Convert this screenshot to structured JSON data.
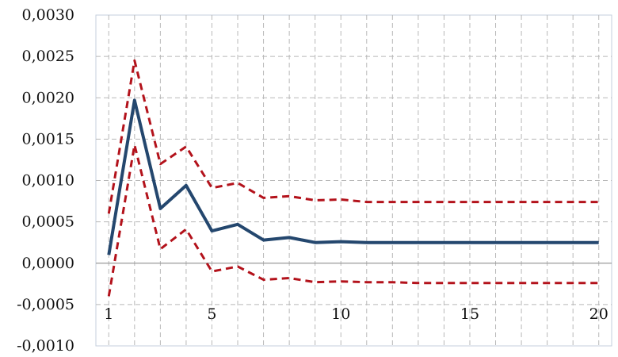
{
  "chart_data": {
    "type": "line",
    "title": "",
    "xlabel": "",
    "ylabel": "",
    "x": [
      1,
      2,
      3,
      4,
      5,
      6,
      7,
      8,
      9,
      10,
      11,
      12,
      13,
      14,
      15,
      16,
      17,
      18,
      19,
      20
    ],
    "x_ticks": [
      1,
      5,
      10,
      15,
      20
    ],
    "x_tick_labels": [
      "1",
      "5",
      "10",
      "15",
      "20"
    ],
    "xlim": [
      0.5,
      20.5
    ],
    "y_ticks": [
      -0.001,
      -0.0005,
      0,
      0.0005,
      0.001,
      0.0015,
      0.002,
      0.0025,
      0.003
    ],
    "y_tick_labels": [
      "-0,0010",
      "-0,0005",
      "0,0000",
      "0,0005",
      "0,0010",
      "0,0015",
      "0,0020",
      "0,0025",
      "0,0030"
    ],
    "ylim": [
      -0.001,
      0.003
    ],
    "grid": true,
    "legend": "none",
    "series": [
      {
        "style": "solid",
        "color": "#24476e",
        "values": [
          0.0001,
          0.00197,
          0.00066,
          0.00094,
          0.00039,
          0.00047,
          0.00028,
          0.00031,
          0.00025,
          0.00026,
          0.00025,
          0.00025,
          0.00025,
          0.00025,
          0.00025,
          0.00025,
          0.00025,
          0.00025,
          0.00025,
          0.00025
        ]
      },
      {
        "style": "dashed",
        "color": "#b3121b",
        "values": [
          0.0006,
          0.00245,
          0.0012,
          0.00141,
          0.00091,
          0.00097,
          0.00079,
          0.00081,
          0.00076,
          0.00077,
          0.00074,
          0.00074,
          0.00074,
          0.00074,
          0.00074,
          0.00074,
          0.00074,
          0.00074,
          0.00074,
          0.00074
        ]
      },
      {
        "style": "dashed",
        "color": "#b3121b",
        "values": [
          -0.0004,
          0.00143,
          0.00017,
          0.00041,
          -0.0001,
          -4e-05,
          -0.0002,
          -0.00018,
          -0.00023,
          -0.00022,
          -0.00023,
          -0.00023,
          -0.00024,
          -0.00024,
          -0.00024,
          -0.00024,
          -0.00024,
          -0.00024,
          -0.00024,
          -0.00024
        ]
      }
    ]
  },
  "colors": {
    "grid": "#b8b8b8",
    "axis": "#9a9a9a",
    "plot_border": "#c4cfdc"
  }
}
